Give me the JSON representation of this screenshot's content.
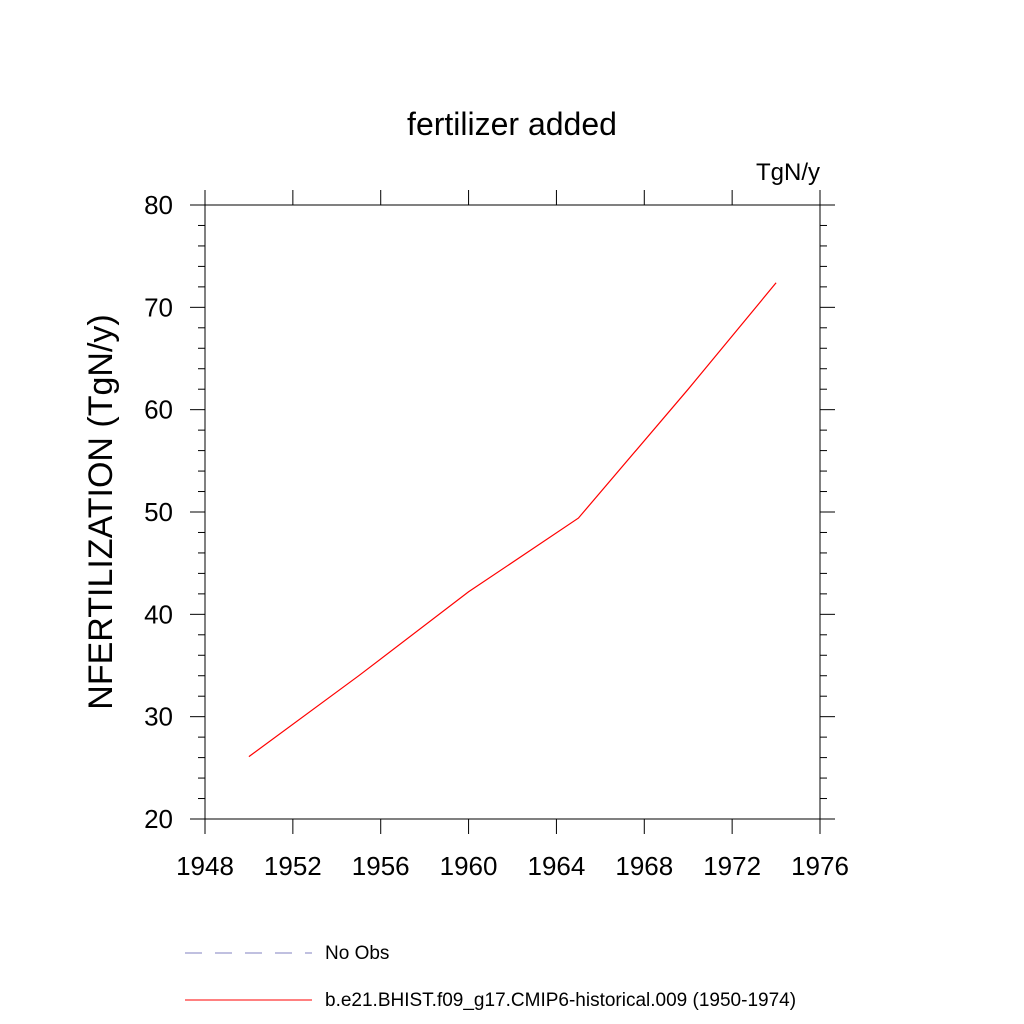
{
  "chart_data": {
    "type": "line",
    "title": "fertilizer added",
    "units": "TgN/y",
    "xlabel": "",
    "ylabel": "NFERTILIZATION  (TgN/y)",
    "xlim": [
      1948,
      1976
    ],
    "ylim": [
      20,
      80
    ],
    "x_ticks": [
      1948,
      1952,
      1956,
      1960,
      1964,
      1968,
      1972,
      1976
    ],
    "y_ticks": [
      20,
      30,
      40,
      50,
      60,
      70,
      80
    ],
    "grid": false,
    "legend_position": "bottom",
    "series": [
      {
        "name": "b.e21.BHIST.f09_g17.CMIP6-historical.009 (1950-1974)",
        "color": "#ff0000",
        "dash": "solid",
        "x": [
          1950,
          1955,
          1960,
          1965,
          1970,
          1974
        ],
        "y": [
          26.1,
          34.0,
          42.2,
          49.4,
          62.0,
          72.4
        ]
      }
    ],
    "legend": [
      {
        "label": "No Obs",
        "color": "#8080c0",
        "dash": "dashed"
      },
      {
        "label": "b.e21.BHIST.f09_g17.CMIP6-historical.009 (1950-1974)",
        "color": "#ff0000",
        "dash": "solid"
      }
    ]
  }
}
